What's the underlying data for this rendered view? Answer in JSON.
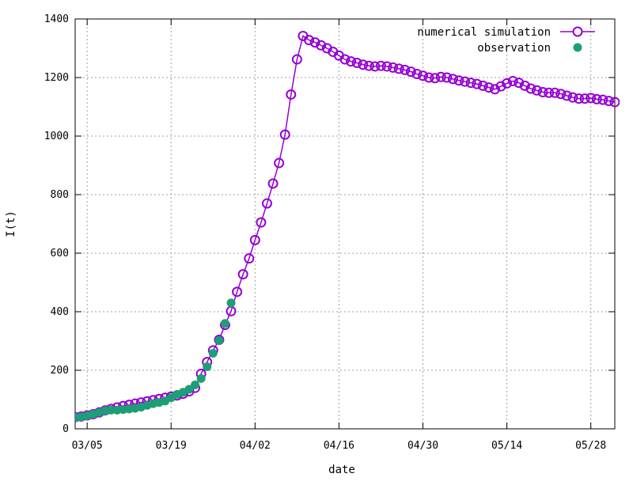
{
  "chart_data": {
    "type": "line",
    "title": "",
    "xlabel": "date",
    "ylabel": "I(t)",
    "x_start_date": "2020-03-01",
    "xlim": [
      2,
      92
    ],
    "ylim": [
      0,
      1400
    ],
    "yticks": [
      0,
      200,
      400,
      600,
      800,
      1000,
      1200,
      1400
    ],
    "xticks": [
      {
        "day": 4,
        "label": "03/05"
      },
      {
        "day": 18,
        "label": "03/19"
      },
      {
        "day": 32,
        "label": "04/02"
      },
      {
        "day": 46,
        "label": "04/16"
      },
      {
        "day": 60,
        "label": "04/30"
      },
      {
        "day": 74,
        "label": "05/14"
      },
      {
        "day": 88,
        "label": "05/28"
      }
    ],
    "grid": true,
    "legend_position": "top-right",
    "series": [
      {
        "name": "numerical simulation",
        "style": "line+open-circle",
        "color": "#9400d3",
        "x": [
          1,
          2,
          3,
          4,
          5,
          6,
          7,
          8,
          9,
          10,
          11,
          12,
          13,
          14,
          15,
          16,
          17,
          18,
          19,
          20,
          21,
          22,
          23,
          24,
          25,
          26,
          27,
          28,
          29,
          30,
          31,
          32,
          33,
          34,
          35,
          36,
          37,
          38,
          39,
          40,
          41,
          42,
          43,
          44,
          45,
          46,
          47,
          48,
          49,
          50,
          51,
          52,
          53,
          54,
          55,
          56,
          57,
          58,
          59,
          60,
          61,
          62,
          63,
          64,
          65,
          66,
          67,
          68,
          69,
          70,
          71,
          72,
          73,
          74,
          75,
          76,
          77,
          78,
          79,
          80,
          81,
          82,
          83,
          84,
          85,
          86,
          87,
          88,
          89,
          90,
          91,
          92
        ],
        "y": [
          38,
          40,
          42,
          46,
          50,
          56,
          63,
          68,
          73,
          78,
          82,
          86,
          90,
          94,
          98,
          102,
          106,
          110,
          114,
          120,
          128,
          140,
          188,
          228,
          268,
          304,
          355,
          402,
          468,
          528,
          582,
          645,
          705,
          770,
          838,
          908,
          1005,
          1142,
          1262,
          1342,
          1328,
          1320,
          1310,
          1300,
          1288,
          1275,
          1262,
          1255,
          1250,
          1244,
          1240,
          1238,
          1240,
          1238,
          1234,
          1230,
          1226,
          1220,
          1212,
          1206,
          1200,
          1198,
          1202,
          1200,
          1195,
          1190,
          1186,
          1182,
          1178,
          1172,
          1166,
          1160,
          1170,
          1180,
          1188,
          1182,
          1172,
          1162,
          1156,
          1150,
          1148,
          1148,
          1144,
          1138,
          1132,
          1128,
          1128,
          1130,
          1126,
          1124,
          1120,
          1116
        ]
      },
      {
        "name": "observation",
        "style": "filled-circle",
        "color": "#1e9e76",
        "x": [
          1,
          2,
          3,
          4,
          5,
          6,
          7,
          8,
          9,
          10,
          11,
          12,
          13,
          14,
          15,
          16,
          17,
          18,
          19,
          20,
          21,
          22,
          23,
          24,
          25,
          26,
          27,
          28
        ],
        "y": [
          38,
          39,
          41,
          45,
          50,
          56,
          62,
          64,
          64,
          66,
          68,
          70,
          74,
          80,
          86,
          90,
          95,
          106,
          118,
          125,
          135,
          150,
          172,
          212,
          258,
          302,
          360,
          430
        ]
      }
    ]
  }
}
